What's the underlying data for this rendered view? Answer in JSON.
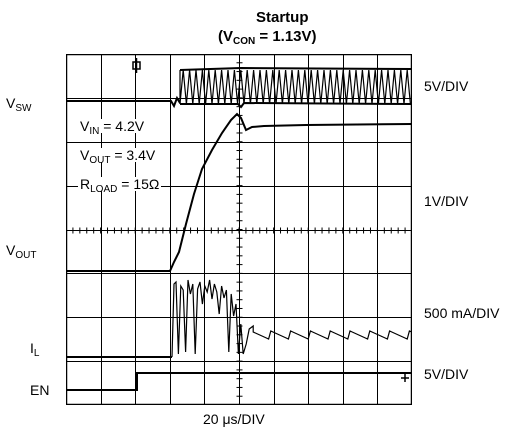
{
  "chart_data": {
    "type": "line",
    "title_line1": "Startup",
    "title_line2_prefix": "(V",
    "title_line2_sub": "CON",
    "title_line2_suffix": " = 1.13V)",
    "xlabel": "20 μs/DIV",
    "divisions": {
      "x": 10,
      "y": 8
    },
    "scales": [
      "5V/DIV",
      "1V/DIV",
      "500 mA/DIV",
      "5V/DIV"
    ],
    "channels": [
      {
        "letter": "V",
        "sub": "SW"
      },
      {
        "letter": "V",
        "sub": "OUT"
      },
      {
        "letter": "I",
        "sub": "L"
      },
      {
        "letter": "EN",
        "sub": ""
      }
    ],
    "annotations": [
      {
        "prefix": "V",
        "sub": "IN",
        "suffix": " = 4.2V"
      },
      {
        "prefix": "V",
        "sub": "OUT",
        "suffix": " = 3.4V"
      },
      {
        "prefix": "R",
        "sub": "LOAD",
        "suffix": " = 15Ω"
      }
    ]
  }
}
